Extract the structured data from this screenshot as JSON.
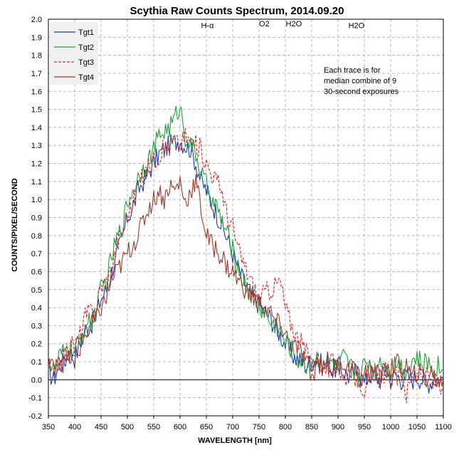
{
  "chart_data": {
    "type": "line",
    "title": "Scythia Raw Counts Spectrum, 2014.09.20",
    "xlabel": "WAVELENGTH [nm]",
    "ylabel": "COUNTS/PIXEL/SECOND",
    "xlim": [
      350,
      1100
    ],
    "ylim": [
      -0.2,
      2.0
    ],
    "x_ticks": [
      "350",
      "400",
      "450",
      "500",
      "550",
      "600",
      "650",
      "700",
      "750",
      "800",
      "850",
      "900",
      "950",
      "1000",
      "1050",
      "1100"
    ],
    "y_ticks": [
      "-0.2",
      "-0.1",
      "0.0",
      "0.1",
      "0.2",
      "0.3",
      "0.4",
      "0.5",
      "0.6",
      "0.7",
      "0.8",
      "0.9",
      "1.0",
      "1.1",
      "1.2",
      "1.3",
      "1.4",
      "1.5",
      "1.6",
      "1.7",
      "1.8",
      "1.9",
      "2.0"
    ],
    "grid": true,
    "legend_position": "top-left",
    "annotations": [
      {
        "text": "H-α",
        "x": 652,
        "y": 1.95
      },
      {
        "text": "O2",
        "x": 760,
        "y": 1.96
      },
      {
        "text": "H2O",
        "x": 816,
        "y": 1.96
      },
      {
        "text": "H2O",
        "x": 935,
        "y": 1.95
      }
    ],
    "note_lines": [
      "Each trace is for",
      "median combine of 9",
      "30-second exposures"
    ],
    "series": [
      {
        "name": "Tgt1",
        "color": "#1f3fa6",
        "style": "solid",
        "x": [
          350,
          360,
          370,
          380,
          390,
          400,
          410,
          420,
          430,
          440,
          450,
          460,
          470,
          480,
          490,
          500,
          510,
          520,
          530,
          540,
          550,
          560,
          570,
          580,
          590,
          600,
          610,
          620,
          630,
          640,
          650,
          660,
          670,
          680,
          690,
          700,
          710,
          720,
          730,
          740,
          750,
          760,
          770,
          780,
          790,
          800,
          810,
          820,
          830,
          840,
          850,
          860,
          870,
          880,
          890,
          900,
          910,
          920,
          930,
          940,
          950,
          960,
          970,
          980,
          990,
          1000,
          1010,
          1020,
          1030,
          1040,
          1050,
          1060,
          1070,
          1080,
          1090,
          1100
        ],
        "y": [
          0.05,
          0.0,
          0.08,
          0.1,
          0.15,
          0.12,
          0.2,
          0.28,
          0.3,
          0.35,
          0.45,
          0.5,
          0.6,
          0.7,
          0.78,
          0.9,
          0.95,
          1.05,
          1.1,
          1.15,
          1.2,
          1.25,
          1.28,
          1.3,
          1.32,
          1.33,
          1.3,
          1.28,
          1.2,
          1.1,
          1.05,
          0.98,
          0.92,
          0.85,
          0.78,
          0.7,
          0.62,
          0.55,
          0.5,
          0.45,
          0.42,
          0.38,
          0.35,
          0.3,
          0.25,
          0.2,
          0.15,
          0.12,
          0.1,
          0.08,
          0.1,
          0.12,
          0.08,
          0.1,
          0.05,
          0.08,
          0.05,
          0.02,
          0.04,
          0.05,
          -0.02,
          0.03,
          0.02,
          0.0,
          0.05,
          0.0,
          0.03,
          0.0,
          0.02,
          0.0,
          0.02,
          0.0,
          -0.02,
          0.0,
          0.01,
          0.0
        ]
      },
      {
        "name": "Tgt2",
        "color": "#22a03a",
        "style": "solid",
        "x": [
          350,
          360,
          370,
          380,
          390,
          400,
          410,
          420,
          430,
          440,
          450,
          460,
          470,
          480,
          490,
          500,
          510,
          520,
          530,
          540,
          550,
          560,
          570,
          580,
          590,
          600,
          610,
          620,
          630,
          640,
          650,
          660,
          670,
          680,
          690,
          700,
          710,
          720,
          730,
          740,
          750,
          760,
          770,
          780,
          790,
          800,
          810,
          820,
          830,
          840,
          850,
          860,
          870,
          880,
          890,
          900,
          910,
          920,
          930,
          940,
          950,
          960,
          970,
          980,
          990,
          1000,
          1010,
          1020,
          1030,
          1040,
          1050,
          1060,
          1070,
          1080,
          1090,
          1100
        ],
        "y": [
          0.1,
          0.05,
          0.12,
          0.15,
          0.18,
          0.15,
          0.22,
          0.3,
          0.32,
          0.38,
          0.5,
          0.55,
          0.68,
          0.78,
          0.85,
          0.98,
          1.05,
          1.12,
          1.18,
          1.22,
          1.28,
          1.35,
          1.38,
          1.4,
          1.45,
          1.52,
          1.35,
          1.3,
          1.25,
          1.15,
          1.08,
          1.0,
          0.95,
          0.88,
          0.8,
          0.72,
          0.62,
          0.55,
          0.5,
          0.45,
          0.4,
          0.38,
          0.32,
          0.3,
          0.28,
          0.2,
          0.18,
          0.12,
          0.1,
          0.08,
          0.1,
          0.12,
          0.1,
          0.08,
          0.1,
          0.05,
          0.12,
          0.08,
          0.05,
          0.02,
          0.08,
          0.1,
          0.05,
          0.12,
          0.08,
          0.05,
          0.1,
          0.08,
          0.05,
          0.1,
          0.12,
          0.08,
          0.1,
          0.05,
          0.08,
          0.05
        ]
      },
      {
        "name": "Tgt3",
        "color": "#d02b2b",
        "style": "dashed",
        "x": [
          350,
          360,
          370,
          380,
          390,
          400,
          410,
          420,
          430,
          440,
          450,
          460,
          470,
          480,
          490,
          500,
          510,
          520,
          530,
          540,
          550,
          560,
          570,
          580,
          590,
          600,
          610,
          620,
          630,
          640,
          650,
          660,
          670,
          680,
          690,
          700,
          710,
          720,
          730,
          740,
          750,
          760,
          770,
          780,
          790,
          800,
          810,
          820,
          830,
          840,
          850,
          860,
          870,
          880,
          890,
          900,
          910,
          920,
          930,
          940,
          950,
          960,
          970,
          980,
          990,
          1000,
          1010,
          1020,
          1030,
          1040,
          1050,
          1060,
          1070,
          1080,
          1090,
          1100
        ],
        "y": [
          0.08,
          0.02,
          0.1,
          0.12,
          0.2,
          0.18,
          0.25,
          0.35,
          0.38,
          0.4,
          0.52,
          0.55,
          0.62,
          0.75,
          0.82,
          0.92,
          0.98,
          1.08,
          1.12,
          1.18,
          1.22,
          1.25,
          1.28,
          1.3,
          1.32,
          1.3,
          1.35,
          1.32,
          1.3,
          1.28,
          1.2,
          1.15,
          1.1,
          1.05,
          0.9,
          0.85,
          0.72,
          0.65,
          0.58,
          0.52,
          0.45,
          0.48,
          0.5,
          0.52,
          0.55,
          0.4,
          0.32,
          0.25,
          0.2,
          0.15,
          0.1,
          0.12,
          0.08,
          0.05,
          0.1,
          0.08,
          0.0,
          0.05,
          0.02,
          0.0,
          -0.05,
          0.05,
          0.02,
          0.0,
          0.05,
          0.02,
          0.0,
          0.05,
          -0.08,
          0.02,
          0.05,
          0.0,
          0.02,
          -0.02,
          0.0,
          -0.05
        ]
      },
      {
        "name": "Tgt4",
        "color": "#9c3a2e",
        "style": "solid",
        "x": [
          350,
          360,
          370,
          380,
          390,
          400,
          410,
          420,
          430,
          440,
          450,
          460,
          470,
          480,
          490,
          500,
          510,
          520,
          530,
          540,
          550,
          560,
          570,
          580,
          590,
          600,
          610,
          620,
          630,
          640,
          650,
          660,
          670,
          680,
          690,
          700,
          710,
          720,
          730,
          740,
          750,
          760,
          770,
          780,
          790,
          800,
          810,
          820,
          830,
          840,
          850,
          860,
          870,
          880,
          890,
          900,
          910,
          920,
          930,
          940,
          950,
          960,
          970,
          980,
          990,
          1000,
          1010,
          1020,
          1030,
          1040,
          1050,
          1060,
          1070,
          1080,
          1090,
          1100
        ],
        "y": [
          0.12,
          0.05,
          0.15,
          0.08,
          0.12,
          0.1,
          0.18,
          0.25,
          0.3,
          0.32,
          0.4,
          0.45,
          0.55,
          0.6,
          0.65,
          0.7,
          0.75,
          0.8,
          0.88,
          0.95,
          1.0,
          1.05,
          1.0,
          1.08,
          1.05,
          1.1,
          0.98,
          1.05,
          1.1,
          0.95,
          0.8,
          0.75,
          0.72,
          0.68,
          0.62,
          0.6,
          0.55,
          0.52,
          0.48,
          0.45,
          0.42,
          0.4,
          0.38,
          0.32,
          0.3,
          0.25,
          0.2,
          0.18,
          0.15,
          0.1,
          0.0,
          0.1,
          0.08,
          0.1,
          0.05,
          0.08,
          0.1,
          0.05,
          0.08,
          0.0,
          0.05,
          0.02,
          0.05,
          0.0,
          0.08,
          0.05,
          0.1,
          0.05,
          0.08,
          0.0,
          0.05,
          0.02,
          0.0,
          0.05,
          -0.02,
          0.0
        ]
      }
    ]
  }
}
